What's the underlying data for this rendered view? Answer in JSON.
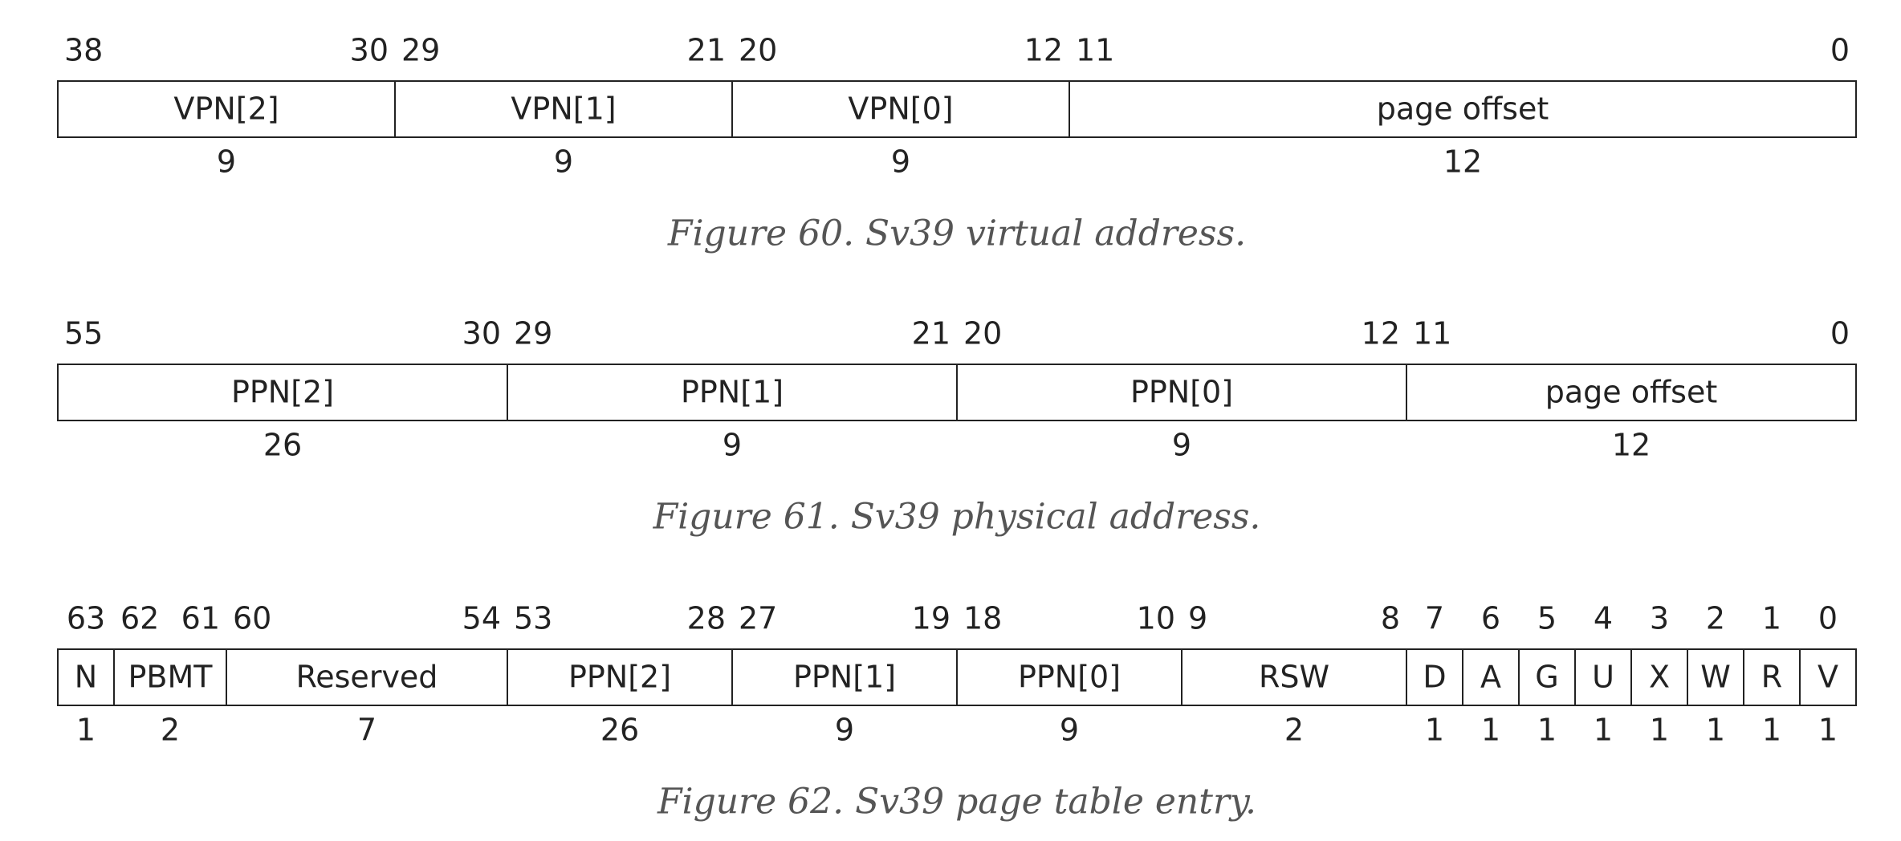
{
  "figures": [
    {
      "caption": "Figure 60. Sv39 virtual address.",
      "fields": [
        {
          "name": "VPN[2]",
          "msb": 38,
          "lsb": 30,
          "width": 9
        },
        {
          "name": "VPN[1]",
          "msb": 29,
          "lsb": 21,
          "width": 9
        },
        {
          "name": "VPN[0]",
          "msb": 20,
          "lsb": 12,
          "width": 9
        },
        {
          "name": "page offset",
          "msb": 11,
          "lsb": 0,
          "width": 12
        }
      ]
    },
    {
      "caption": "Figure 61. Sv39 physical address.",
      "fields": [
        {
          "name": "PPN[2]",
          "msb": 55,
          "lsb": 30,
          "width": 26
        },
        {
          "name": "PPN[1]",
          "msb": 29,
          "lsb": 21,
          "width": 9
        },
        {
          "name": "PPN[0]",
          "msb": 20,
          "lsb": 12,
          "width": 9
        },
        {
          "name": "page offset",
          "msb": 11,
          "lsb": 0,
          "width": 12
        }
      ]
    },
    {
      "caption": "Figure 62. Sv39 page table entry.",
      "fields": [
        {
          "name": "N",
          "bit": 63,
          "width": 1
        },
        {
          "name": "PBMT",
          "msb": 62,
          "lsb": 61,
          "width": 2
        },
        {
          "name": "Reserved",
          "msb": 60,
          "lsb": 54,
          "width": 7
        },
        {
          "name": "PPN[2]",
          "msb": 53,
          "lsb": 28,
          "width": 26
        },
        {
          "name": "PPN[1]",
          "msb": 27,
          "lsb": 19,
          "width": 9
        },
        {
          "name": "PPN[0]",
          "msb": 18,
          "lsb": 10,
          "width": 9
        },
        {
          "name": "RSW",
          "msb": 9,
          "lsb": 8,
          "width": 2
        },
        {
          "name": "D",
          "bit": 7,
          "width": 1
        },
        {
          "name": "A",
          "bit": 6,
          "width": 1
        },
        {
          "name": "G",
          "bit": 5,
          "width": 1
        },
        {
          "name": "U",
          "bit": 4,
          "width": 1
        },
        {
          "name": "X",
          "bit": 3,
          "width": 1
        },
        {
          "name": "W",
          "bit": 2,
          "width": 1
        },
        {
          "name": "R",
          "bit": 1,
          "width": 1
        },
        {
          "name": "V",
          "bit": 0,
          "width": 1
        }
      ]
    }
  ]
}
